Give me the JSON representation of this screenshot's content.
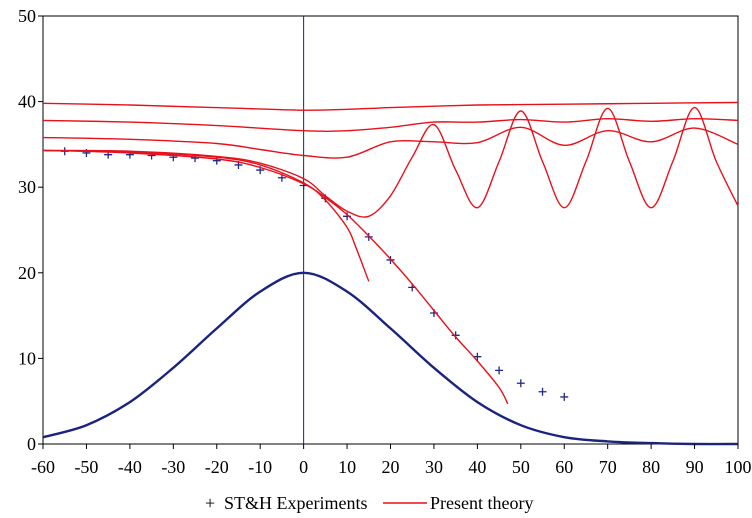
{
  "chart_data": {
    "type": "line",
    "title": "",
    "xlabel": "",
    "ylabel": "",
    "xlim": [
      -60,
      100
    ],
    "ylim": [
      0,
      50
    ],
    "x_ticks": [
      -60,
      -50,
      -40,
      -30,
      -20,
      -10,
      0,
      10,
      20,
      30,
      40,
      50,
      60,
      70,
      80,
      90,
      100
    ],
    "y_ticks": [
      0,
      10,
      20,
      30,
      40,
      50
    ],
    "x_tick_labels": [
      "-60",
      "-50",
      "-40",
      "-30",
      "-20",
      "-10",
      "0",
      "10",
      "20",
      "30",
      "40",
      "50",
      "60",
      "70",
      "80",
      "90",
      "100"
    ],
    "y_tick_labels": [
      "0",
      "10",
      "20",
      "30",
      "40",
      "50"
    ],
    "grid": false,
    "legend_position": "bottom",
    "vertical_line_x": 0,
    "colors": {
      "experiments": "#1f2a8c",
      "theory": "#e8101a",
      "profile": "#1a237e",
      "axes": "#1a237e"
    },
    "series": [
      {
        "name": "ST&H Experiments",
        "kind": "markers",
        "marker": "+",
        "x": [
          -55,
          -50,
          -45,
          -40,
          -35,
          -30,
          -25,
          -20,
          -15,
          -10,
          -5,
          0,
          5,
          10,
          15,
          20,
          25,
          30,
          35,
          40,
          45,
          50,
          55,
          60
        ],
        "y": [
          34.2,
          34.0,
          33.8,
          33.8,
          33.7,
          33.5,
          33.4,
          33.1,
          32.6,
          32.0,
          31.1,
          30.2,
          28.7,
          26.6,
          24.2,
          21.5,
          18.3,
          15.3,
          12.7,
          10.2,
          8.6,
          7.1,
          6.1,
          5.5
        ]
      },
      {
        "name": "Present theory",
        "kind": "line",
        "x": [
          -60,
          -40,
          -20,
          -10,
          0,
          5,
          10,
          15,
          20,
          25,
          30,
          35,
          40,
          45,
          47
        ],
        "y": [
          34.3,
          34.0,
          33.3,
          32.3,
          30.4,
          28.8,
          26.8,
          24.3,
          21.6,
          18.7,
          15.6,
          12.5,
          9.7,
          6.6,
          4.7
        ]
      },
      {
        "kind": "line",
        "x": [
          -60,
          -40,
          -20,
          -10,
          0,
          5,
          10,
          12,
          15
        ],
        "y": [
          34.3,
          34.1,
          33.5,
          32.6,
          30.5,
          28.5,
          25.3,
          23.0,
          19.0
        ]
      },
      {
        "kind": "line",
        "x": [
          -60,
          -40,
          -20,
          -10,
          0,
          5,
          10,
          15,
          20,
          25,
          30,
          35,
          40,
          45,
          50,
          55,
          60,
          65,
          70,
          75,
          80,
          85,
          90,
          95,
          100
        ],
        "y": [
          34.3,
          34.2,
          33.6,
          32.8,
          31.0,
          29.0,
          27.2,
          26.6,
          29.0,
          33.5,
          37.3,
          32.0,
          27.6,
          33.0,
          38.9,
          33.0,
          27.6,
          33.0,
          39.2,
          33.0,
          27.6,
          33.0,
          39.3,
          33.0,
          27.8
        ]
      },
      {
        "kind": "line",
        "x": [
          -60,
          -40,
          -20,
          -10,
          0,
          10,
          20,
          30,
          40,
          50,
          60,
          70,
          80,
          90,
          100
        ],
        "y": [
          35.8,
          35.6,
          35.1,
          34.4,
          33.7,
          33.5,
          35.3,
          35.3,
          35.2,
          37.0,
          34.9,
          36.6,
          35.3,
          36.9,
          35.0
        ]
      },
      {
        "kind": "line",
        "x": [
          -60,
          -40,
          -20,
          0,
          10,
          20,
          30,
          40,
          50,
          60,
          70,
          80,
          90,
          100
        ],
        "y": [
          37.8,
          37.6,
          37.2,
          36.6,
          36.6,
          37.0,
          37.6,
          37.6,
          37.9,
          37.6,
          38.0,
          37.7,
          38.0,
          37.8
        ]
      },
      {
        "kind": "line",
        "x": [
          -60,
          -40,
          -20,
          0,
          10,
          20,
          40,
          60,
          80,
          100
        ],
        "y": [
          39.8,
          39.6,
          39.3,
          39.0,
          39.1,
          39.3,
          39.6,
          39.7,
          39.8,
          39.9
        ]
      },
      {
        "kind": "line",
        "x": [
          -60,
          -50,
          -40,
          -30,
          -20,
          -10,
          0,
          10,
          20,
          30,
          40,
          50,
          60,
          70,
          80,
          90,
          100
        ],
        "y": [
          0.8,
          2.2,
          4.9,
          8.9,
          13.5,
          17.8,
          20.0,
          17.8,
          13.5,
          8.9,
          4.9,
          2.2,
          0.8,
          0.3,
          0.1,
          0.0,
          0.0
        ]
      }
    ],
    "legend": [
      {
        "label": "ST&H Experiments",
        "symbol": "+"
      },
      {
        "label": "Present theory",
        "symbol": "line"
      }
    ]
  }
}
